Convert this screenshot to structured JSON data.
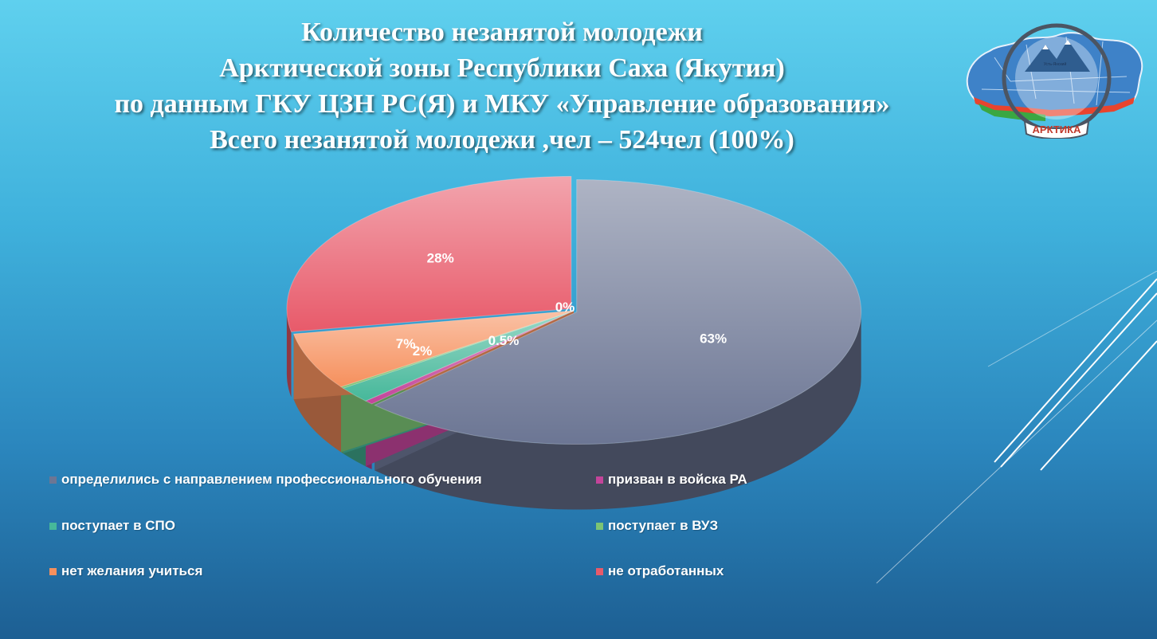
{
  "title_lines": [
    "Количество незанятой молодежи",
    "Арктической зоны  Республики Саха (Якутия)",
    "по данным ГКУ ЦЗН РС(Я) и МКУ «Управление образования»",
    "Всего незанятой молодежи ,чел – 524чел (100%)"
  ],
  "logo": {
    "text": "АРКТИКА",
    "map_labels": [
      "Усть-Янский"
    ]
  },
  "chart_data": {
    "type": "pie",
    "title": "Количество незанятой молодежи Арктической зоны Республики Саха (Якутия)",
    "total": "524чел (100%)",
    "legend_placement": "bottom",
    "slices": [
      {
        "name": "определились с направлением профессионального обучения",
        "value": 63,
        "label": "63%",
        "color": "#6c7694"
      },
      {
        "name": "призван в войска РА",
        "value": 0.5,
        "label": "0.5%",
        "color": "#c3449a"
      },
      {
        "name": "поступает в СПО",
        "value": 2,
        "label": "2%",
        "color": "#46b89a"
      },
      {
        "name": "поступает в ВУЗ",
        "value": 0.2,
        "label": "0%",
        "color": "#7cc474"
      },
      {
        "name": "нет желания учиться",
        "value": 7,
        "label": "7%",
        "color": "#f6905d"
      },
      {
        "name": "не отработанных",
        "value": 28,
        "label": "28%",
        "color": "#e85a6a"
      }
    ]
  }
}
